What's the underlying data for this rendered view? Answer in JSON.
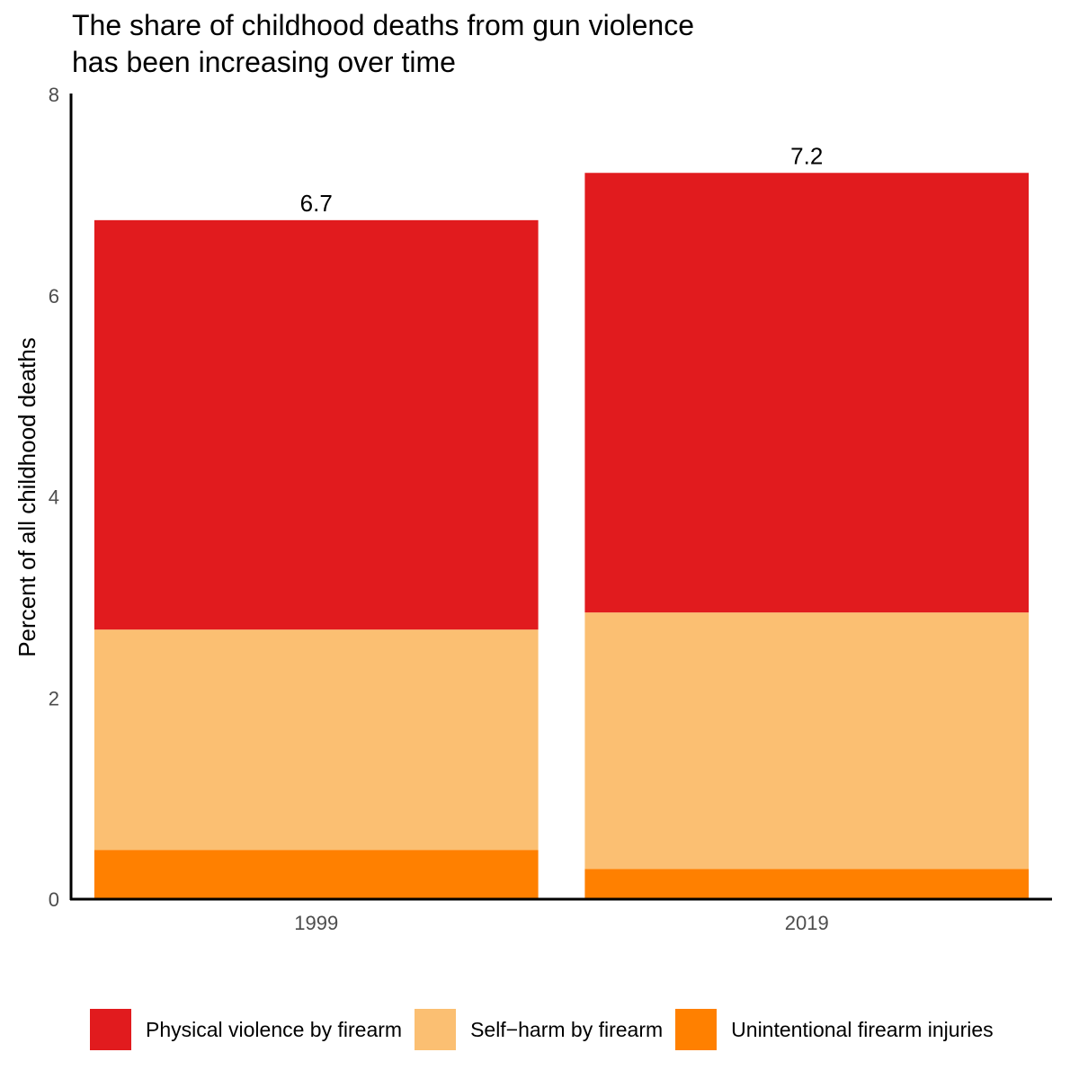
{
  "title": {
    "line1": "The share of childhood deaths from gun violence",
    "line2": "has been increasing over time"
  },
  "chart_data": {
    "type": "bar",
    "stacked": true,
    "categories": [
      "1999",
      "2019"
    ],
    "series": [
      {
        "name": "Unintentional firearm injuries",
        "color": "#FF8000",
        "values": [
          0.49,
          0.3
        ]
      },
      {
        "name": "Self−harm by firearm",
        "color": "#FBBF72",
        "values": [
          2.19,
          2.55
        ]
      },
      {
        "name": "Physical violence by firearm",
        "color": "#E11B1E",
        "values": [
          4.07,
          4.37
        ]
      }
    ],
    "totals": [
      "6.7",
      "7.2"
    ],
    "ylabel": "Percent of all childhood deaths",
    "xlabel": "",
    "ylim": [
      0,
      8
    ],
    "yticks": [
      "0",
      "2",
      "4",
      "6",
      "8"
    ],
    "grid": false,
    "legend_position": "bottom"
  },
  "legend": {
    "items": [
      {
        "label": "Physical violence by firearm",
        "color": "#E11B1E"
      },
      {
        "label": "Self−harm by firearm",
        "color": "#FBBF72"
      },
      {
        "label": "Unintentional firearm injuries",
        "color": "#FF8000"
      }
    ]
  }
}
